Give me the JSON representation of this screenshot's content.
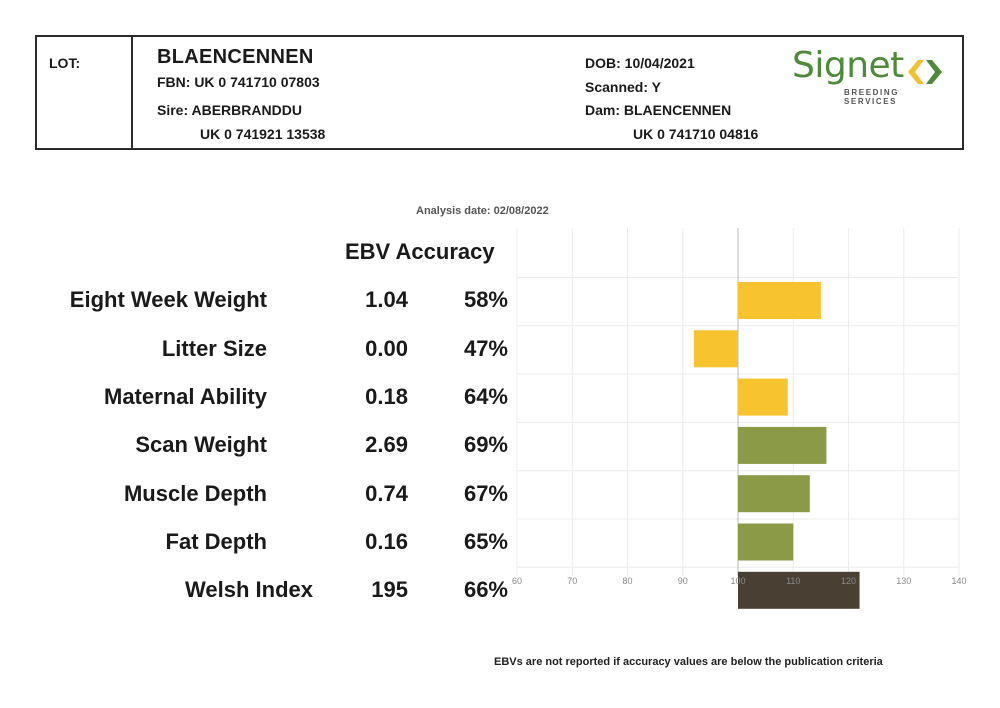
{
  "header": {
    "lot_label": "LOT:",
    "name": "BLAENCENNEN",
    "fbn": "FBN: UK 0 741710 07803",
    "sire": "Sire: ABERBRANDDU",
    "sire_id": "UK 0 741921 13538",
    "dob": "DOB: 10/04/2021",
    "scanned": "Scanned: Y",
    "dam": "Dam: BLAENCENNEN",
    "dam_id": "UK 0 741710 04816",
    "logo_text": "Signet",
    "logo_subtext": "BREEDING SERVICES",
    "logo_colors": {
      "word": "#4f8a3a",
      "left_arrow": "#f2c12e",
      "right_arrow": "#4f8a3a"
    }
  },
  "analysis_date": "Analysis date: 02/08/2022",
  "column_headers": "EBV Accuracy",
  "footnote": "EBVs are not reported if accuracy values are below the publication criteria",
  "chart_data": {
    "type": "bar",
    "orientation": "horizontal",
    "baseline": 100,
    "xlim": [
      60,
      140
    ],
    "xticks": [
      60,
      70,
      80,
      90,
      100,
      110,
      120,
      130,
      140
    ],
    "grid": true,
    "categories": [
      "Eight Week Weight",
      "Litter Size",
      "Maternal Ability",
      "Scan Weight",
      "Muscle Depth",
      "Fat Depth",
      "Welsh Index"
    ],
    "ebv": [
      "1.04",
      "0.00",
      "0.18",
      "2.69",
      "0.74",
      "0.16",
      "195"
    ],
    "accuracy": [
      "58%",
      "47%",
      "64%",
      "69%",
      "67%",
      "65%",
      "66%"
    ],
    "values": [
      115,
      92,
      109,
      116,
      113,
      110,
      122
    ],
    "colors": [
      "#f7c32e",
      "#f7c32e",
      "#f7c32e",
      "#8a9a46",
      "#8a9a46",
      "#8a9a46",
      "#4a3f33"
    ]
  }
}
